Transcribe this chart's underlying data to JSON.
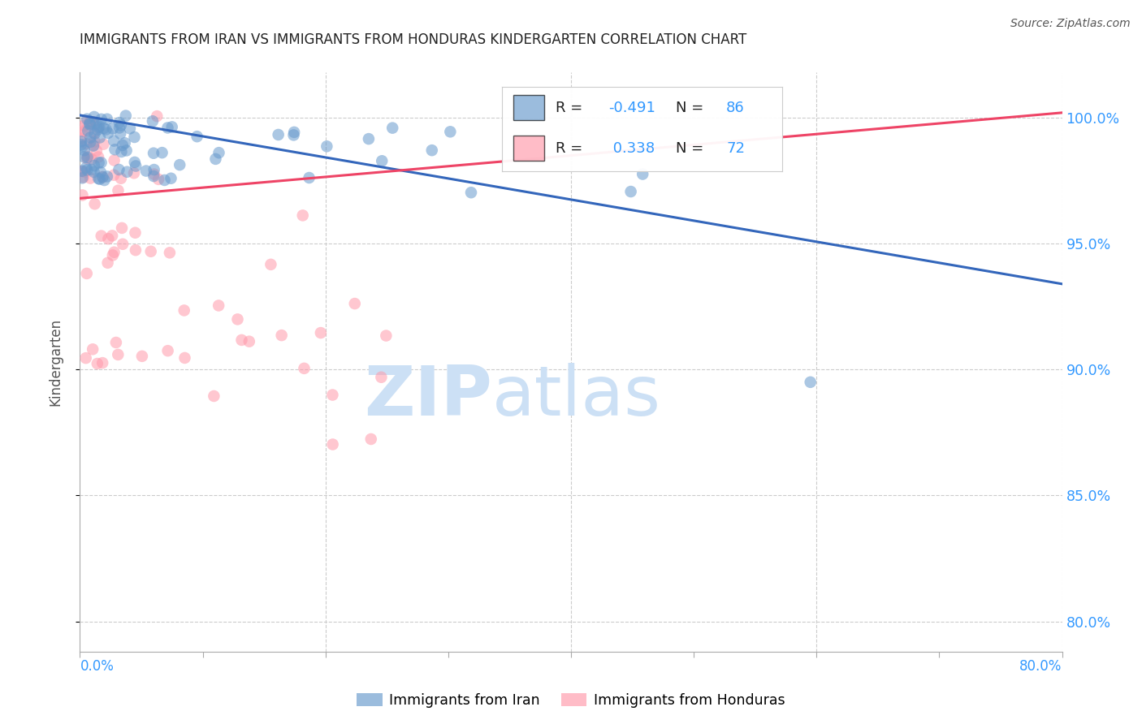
{
  "title": "IMMIGRANTS FROM IRAN VS IMMIGRANTS FROM HONDURAS KINDERGARTEN CORRELATION CHART",
  "source": "Source: ZipAtlas.com",
  "ylabel": "Kindergarten",
  "yticks": [
    0.8,
    0.85,
    0.9,
    0.95,
    1.0
  ],
  "ytick_labels": [
    "80.0%",
    "85.0%",
    "90.0%",
    "95.0%",
    "100.0%"
  ],
  "xmin": 0.0,
  "xmax": 0.8,
  "ymin": 0.788,
  "ymax": 1.018,
  "iran_color": "#6699cc",
  "honduras_color": "#ff99aa",
  "iran_line_color": "#3366bb",
  "honduras_line_color": "#ee4466",
  "iran_R": -0.491,
  "iran_N": 86,
  "honduras_R": 0.338,
  "honduras_N": 72,
  "legend_label_iran": "Immigrants from Iran",
  "legend_label_honduras": "Immigrants from Honduras",
  "iran_line_x0": 0.0,
  "iran_line_y0": 1.001,
  "iran_line_x1": 0.8,
  "iran_line_y1": 0.934,
  "honduras_line_x0": 0.0,
  "honduras_line_y0": 0.968,
  "honduras_line_x1": 0.8,
  "honduras_line_y1": 1.002
}
